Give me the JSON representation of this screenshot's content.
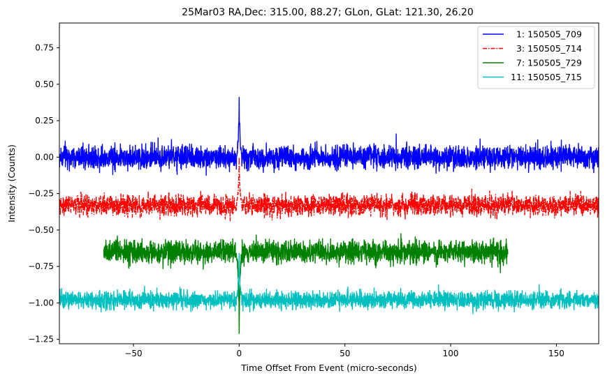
{
  "chart_data": {
    "type": "line",
    "title": "25Mar03 RA,Dec:  315.00,  88.27; GLon, GLat:  121.30,  26.20",
    "xlabel": "Time Offset From Event (micro-seconds)",
    "ylabel": "Intensity (Counts)",
    "xlim": [
      -85,
      170
    ],
    "ylim": [
      -1.28,
      0.92
    ],
    "xticks": [
      -50,
      0,
      50,
      100,
      150
    ],
    "xtick_labels": [
      "−50",
      "0",
      "50",
      "100",
      "150"
    ],
    "yticks": [
      0.75,
      0.5,
      0.25,
      0.0,
      -0.25,
      -0.5,
      -0.75,
      -1.0,
      -1.25
    ],
    "ytick_labels": [
      "0.75",
      "0.50",
      "0.25",
      "0.00",
      "−0.25",
      "−0.50",
      "−0.75",
      "−1.00",
      "−1.25"
    ],
    "grid": false,
    "legend_position": "top-right",
    "series": [
      {
        "name": "1: 150505_709",
        "legend_label": "  1: 150505_709",
        "color": "#0000ff",
        "linestyle": "solid",
        "x_range": [
          -85,
          170
        ],
        "baseline": 0.0,
        "noise": 0.04,
        "peak": {
          "x": 0,
          "value": 0.41
        }
      },
      {
        "name": "3: 150505_714",
        "legend_label": "  3: 150505_714",
        "color": "#ff0000",
        "linestyle": "dashdot",
        "x_range": [
          -85,
          170
        ],
        "baseline": -0.33,
        "noise": 0.035,
        "peak": {
          "x": 0,
          "value": 0.0
        }
      },
      {
        "name": "7: 150505_729",
        "legend_label": "  7: 150505_729",
        "color": "#008000",
        "linestyle": "solid",
        "x_range": [
          -64,
          127
        ],
        "baseline": -0.65,
        "noise": 0.04,
        "peak": {
          "x": 0,
          "value": -1.21
        }
      },
      {
        "name": "11: 150505_715",
        "legend_label": "11: 150505_715",
        "color": "#00bfbf",
        "linestyle": "solid",
        "x_range": [
          -85,
          170
        ],
        "baseline": -0.98,
        "noise": 0.03,
        "peak": {
          "x": 0,
          "value": -0.66
        }
      }
    ]
  }
}
